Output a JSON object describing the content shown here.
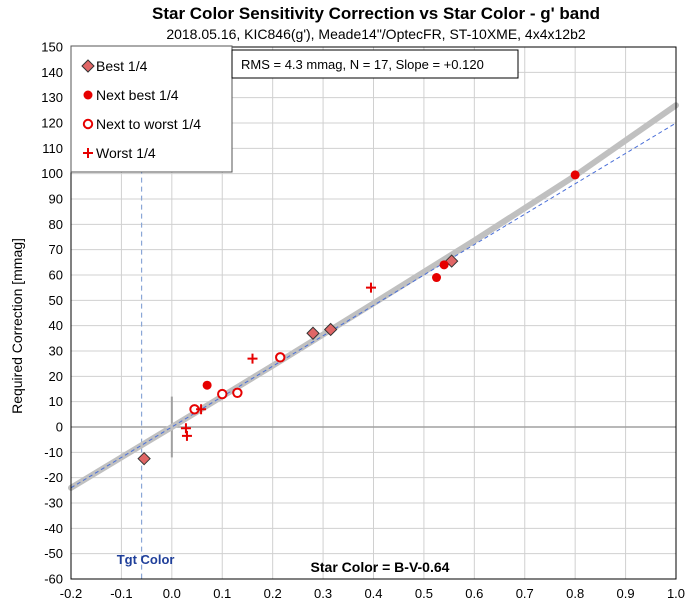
{
  "chart_data": {
    "type": "scatter",
    "title": "Star Color Sensitivity Correction vs Star Color - g' band",
    "subtitle": "2018.05.16, KIC846(g'), Meade14\"/OptecFR, ST-10XME, 4x4x12b2",
    "ylabel": "Required Correction [mmag]",
    "xlabel_annotation": "Star Color = B-V-0.64",
    "target_label": "Tgt Color",
    "target_x": -0.06,
    "stats_box": "RMS = 4.3 mmag, N = 17, Slope = +0.120",
    "xlim": [
      -0.2,
      1.0
    ],
    "ylim": [
      -60,
      150
    ],
    "x_ticks": [
      "-0.2",
      "-0.1",
      "0.0",
      "0.1",
      "0.2",
      "0.3",
      "0.4",
      "0.5",
      "0.6",
      "0.7",
      "0.8",
      "0.9",
      "1.0"
    ],
    "y_ticks": [
      "150",
      "140",
      "130",
      "120",
      "110",
      "100",
      "90",
      "80",
      "70",
      "60",
      "50",
      "40",
      "30",
      "20",
      "10",
      "0",
      "-10",
      "-20",
      "-30",
      "-40",
      "-50",
      "-60"
    ],
    "grid": true,
    "legend_position": "top-left",
    "series": [
      {
        "name": "Best 1/4",
        "marker": "diamond",
        "color": "#e06666",
        "points": [
          [
            -0.055,
            -12.5
          ],
          [
            0.28,
            37
          ],
          [
            0.315,
            38.5
          ],
          [
            0.555,
            65.5
          ]
        ]
      },
      {
        "name": "Next best 1/4",
        "marker": "dot",
        "color": "#e60000",
        "points": [
          [
            0.07,
            16.5
          ],
          [
            0.525,
            59
          ],
          [
            0.54,
            64
          ],
          [
            0.8,
            99.5
          ]
        ]
      },
      {
        "name": "Next to worst 1/4",
        "marker": "ring",
        "color": "#e60000",
        "points": [
          [
            0.045,
            7
          ],
          [
            0.1,
            13
          ],
          [
            0.13,
            13.5
          ],
          [
            0.215,
            27.5
          ]
        ]
      },
      {
        "name": "Worst 1/4",
        "marker": "plus",
        "color": "#e60000",
        "points": [
          [
            0.028,
            -0.5
          ],
          [
            0.03,
            -3.5
          ],
          [
            0.058,
            7
          ],
          [
            0.16,
            27
          ],
          [
            0.395,
            55
          ]
        ]
      }
    ],
    "fit_curve": [
      [
        -0.2,
        -24
      ],
      [
        0.0,
        0
      ],
      [
        0.2,
        24.2
      ],
      [
        0.4,
        48.8
      ],
      [
        0.6,
        73.6
      ],
      [
        0.8,
        99.2
      ],
      [
        1.0,
        127
      ]
    ],
    "linear_fit": [
      [
        -0.2,
        -24
      ],
      [
        1.0,
        120
      ]
    ],
    "colors": {
      "fit_curve": "#c0c0c0",
      "linear_fit": "#4a6fd8",
      "target_line": "#8aa6d6",
      "grid": "#d0d0d0",
      "zero_line": "#a0a0a0"
    }
  }
}
